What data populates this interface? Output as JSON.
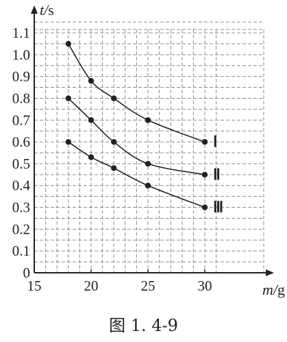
{
  "chart_data": {
    "type": "line",
    "xlabel": "m/g",
    "ylabel": "t/s",
    "xlim": [
      15,
      30
    ],
    "ylim": [
      0,
      1.1
    ],
    "x_ticks": [
      "15",
      "20",
      "25",
      "30"
    ],
    "y_ticks": [
      "0",
      "0.1",
      "0.2",
      "0.3",
      "0.4",
      "0.5",
      "0.6",
      "0.7",
      "0.8",
      "0.9",
      "1.0",
      "1.1"
    ],
    "grid": true,
    "series": [
      {
        "name": "Ⅰ",
        "x": [
          18,
          20,
          22,
          25,
          30
        ],
        "y": [
          1.05,
          0.88,
          0.8,
          0.7,
          0.6
        ]
      },
      {
        "name": "Ⅱ",
        "x": [
          18,
          20,
          22,
          25,
          30
        ],
        "y": [
          0.8,
          0.7,
          0.6,
          0.5,
          0.45
        ]
      },
      {
        "name": "Ⅲ",
        "x": [
          18,
          20,
          22,
          25,
          30
        ],
        "y": [
          0.6,
          0.53,
          0.48,
          0.4,
          0.3
        ]
      }
    ]
  },
  "caption": "图 1. 4-9"
}
